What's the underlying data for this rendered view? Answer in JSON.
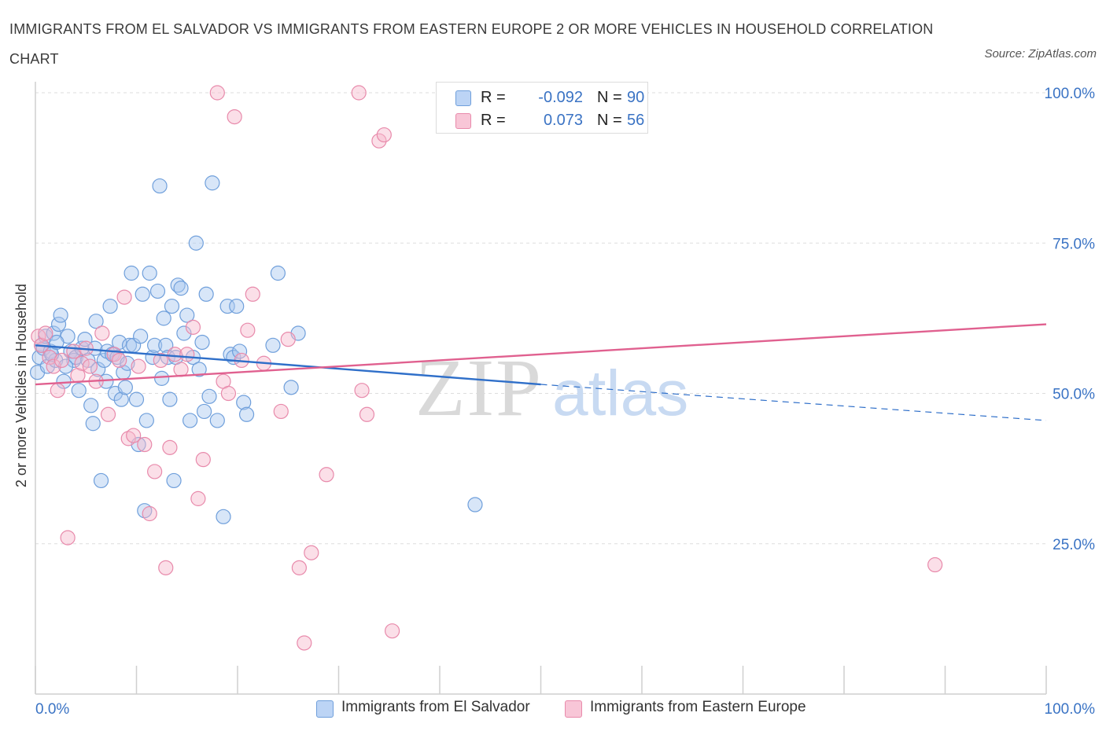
{
  "title": "IMMIGRANTS FROM EL SALVADOR VS IMMIGRANTS FROM EASTERN EUROPE 2 OR MORE VEHICLES IN HOUSEHOLD CORRELATION CHART",
  "source": "Source: ZipAtlas.com",
  "watermark": {
    "zip": "ZIP",
    "atlas": "atlas"
  },
  "colors": {
    "blue_fill": "#a9c8f0",
    "blue_stroke": "#6f9fdb",
    "blue_line": "#2f6fc9",
    "pink_fill": "#f6b8cd",
    "pink_stroke": "#e88aab",
    "pink_line": "#e0608f",
    "axis_text": "#3a73c4",
    "grid": "#dddddd"
  },
  "legend": {
    "rows": [
      {
        "r_label": "R =",
        "r_value": "-0.092",
        "n_label": "N =",
        "n_value": "90",
        "color": "blue"
      },
      {
        "r_label": "R =",
        "r_value": "0.073",
        "n_label": "N =",
        "n_value": "56",
        "color": "pink"
      }
    ]
  },
  "chart_data": {
    "type": "scatter",
    "title": "IMMIGRANTS FROM EL SALVADOR VS IMMIGRANTS FROM EASTERN EUROPE 2 OR MORE VEHICLES IN HOUSEHOLD CORRELATION CHART",
    "xlabel": "",
    "ylabel": "2 or more Vehicles in Household",
    "xlim": [
      0,
      100
    ],
    "ylim": [
      0,
      100
    ],
    "x_ticks": [
      "0.0%",
      "100.0%"
    ],
    "y_ticks": [
      "25.0%",
      "50.0%",
      "75.0%",
      "100.0%"
    ],
    "y_tick_values": [
      25,
      50,
      75,
      100
    ],
    "grid": true,
    "legend_position": "bottom",
    "series": [
      {
        "name": "Immigrants from El Salvador",
        "color": "blue",
        "trend": {
          "x0": 0,
          "y0": 58.0,
          "x1": 50,
          "y1": 51.5,
          "dash_to_x": 100,
          "dash_to_y": 45.5
        },
        "points": [
          [
            0.2,
            53.5
          ],
          [
            0.4,
            56.0
          ],
          [
            0.6,
            58.0
          ],
          [
            0.8,
            57.5
          ],
          [
            1.0,
            59.5
          ],
          [
            1.2,
            54.5
          ],
          [
            1.5,
            57.0
          ],
          [
            1.8,
            60.0
          ],
          [
            2.0,
            55.5
          ],
          [
            2.3,
            61.5
          ],
          [
            2.5,
            63.0
          ],
          [
            2.8,
            52.0
          ],
          [
            3.2,
            59.5
          ],
          [
            3.5,
            57.0
          ],
          [
            3.8,
            55.5
          ],
          [
            4.0,
            56.0
          ],
          [
            4.3,
            50.5
          ],
          [
            4.6,
            57.5
          ],
          [
            4.9,
            59.0
          ],
          [
            5.2,
            55.5
          ],
          [
            5.5,
            48.0
          ],
          [
            5.7,
            45.0
          ],
          [
            5.9,
            57.5
          ],
          [
            6.0,
            62.0
          ],
          [
            6.2,
            54.0
          ],
          [
            6.5,
            35.5
          ],
          [
            6.8,
            55.5
          ],
          [
            7.1,
            57.0
          ],
          [
            7.4,
            64.5
          ],
          [
            7.6,
            56.5
          ],
          [
            7.9,
            50.0
          ],
          [
            8.1,
            56.0
          ],
          [
            8.3,
            58.5
          ],
          [
            8.5,
            49.0
          ],
          [
            8.7,
            53.5
          ],
          [
            8.9,
            51.0
          ],
          [
            9.1,
            55.0
          ],
          [
            9.3,
            58.0
          ],
          [
            9.5,
            70.0
          ],
          [
            9.7,
            58.0
          ],
          [
            10.0,
            49.0
          ],
          [
            10.2,
            41.5
          ],
          [
            10.4,
            59.5
          ],
          [
            10.6,
            66.5
          ],
          [
            10.8,
            30.5
          ],
          [
            11.0,
            45.5
          ],
          [
            11.3,
            70.0
          ],
          [
            11.6,
            56.0
          ],
          [
            11.8,
            58.0
          ],
          [
            12.1,
            67.0
          ],
          [
            12.3,
            84.5
          ],
          [
            12.5,
            52.5
          ],
          [
            12.7,
            62.5
          ],
          [
            12.9,
            58.0
          ],
          [
            13.1,
            56.0
          ],
          [
            13.3,
            49.0
          ],
          [
            13.5,
            64.5
          ],
          [
            13.7,
            35.5
          ],
          [
            13.9,
            56.0
          ],
          [
            14.1,
            68.0
          ],
          [
            14.4,
            67.5
          ],
          [
            14.7,
            60.0
          ],
          [
            15.0,
            63.0
          ],
          [
            15.3,
            45.5
          ],
          [
            15.6,
            56.0
          ],
          [
            15.9,
            75.0
          ],
          [
            16.2,
            54.0
          ],
          [
            16.5,
            58.5
          ],
          [
            16.7,
            47.0
          ],
          [
            16.9,
            66.5
          ],
          [
            17.2,
            49.5
          ],
          [
            17.5,
            85.0
          ],
          [
            18.0,
            45.5
          ],
          [
            18.6,
            29.5
          ],
          [
            19.0,
            64.5
          ],
          [
            19.3,
            56.5
          ],
          [
            19.6,
            56.0
          ],
          [
            19.9,
            64.5
          ],
          [
            20.2,
            57.0
          ],
          [
            20.6,
            48.5
          ],
          [
            20.9,
            46.5
          ],
          [
            23.5,
            58.0
          ],
          [
            24.0,
            70.0
          ],
          [
            25.3,
            51.0
          ],
          [
            26.0,
            60.0
          ],
          [
            43.5,
            31.5
          ],
          [
            1.6,
            56.5
          ],
          [
            2.1,
            58.5
          ],
          [
            3.0,
            54.5
          ],
          [
            7.0,
            52.0
          ]
        ]
      },
      {
        "name": "Immigrants from Eastern Europe",
        "color": "pink",
        "trend": {
          "x0": 0,
          "y0": 51.5,
          "x1": 100,
          "y1": 61.5
        },
        "points": [
          [
            0.3,
            59.5
          ],
          [
            0.6,
            58.0
          ],
          [
            1.0,
            60.0
          ],
          [
            1.4,
            56.0
          ],
          [
            1.8,
            54.5
          ],
          [
            2.2,
            50.5
          ],
          [
            2.6,
            55.5
          ],
          [
            3.2,
            26.0
          ],
          [
            3.8,
            57.0
          ],
          [
            4.2,
            53.0
          ],
          [
            4.6,
            55.0
          ],
          [
            5.0,
            57.5
          ],
          [
            5.4,
            54.5
          ],
          [
            6.0,
            52.0
          ],
          [
            6.6,
            60.0
          ],
          [
            7.2,
            46.5
          ],
          [
            7.8,
            56.5
          ],
          [
            8.3,
            55.5
          ],
          [
            8.8,
            66.0
          ],
          [
            9.2,
            42.5
          ],
          [
            9.7,
            43.0
          ],
          [
            10.2,
            54.5
          ],
          [
            10.8,
            41.5
          ],
          [
            11.3,
            30.0
          ],
          [
            11.8,
            37.0
          ],
          [
            12.4,
            55.5
          ],
          [
            12.9,
            21.0
          ],
          [
            13.3,
            41.0
          ],
          [
            13.8,
            56.5
          ],
          [
            14.4,
            54.0
          ],
          [
            15.0,
            56.5
          ],
          [
            15.6,
            61.0
          ],
          [
            16.1,
            32.5
          ],
          [
            16.6,
            39.0
          ],
          [
            18.0,
            100.0
          ],
          [
            18.6,
            52.0
          ],
          [
            19.1,
            50.0
          ],
          [
            19.7,
            96.0
          ],
          [
            20.4,
            55.5
          ],
          [
            21.0,
            60.5
          ],
          [
            21.5,
            66.5
          ],
          [
            22.6,
            55.0
          ],
          [
            24.3,
            47.0
          ],
          [
            25.0,
            59.0
          ],
          [
            26.1,
            21.0
          ],
          [
            26.6,
            8.5
          ],
          [
            27.3,
            23.5
          ],
          [
            28.8,
            36.5
          ],
          [
            32.0,
            100.0
          ],
          [
            32.3,
            50.5
          ],
          [
            32.8,
            46.5
          ],
          [
            34.0,
            92.0
          ],
          [
            34.5,
            93.0
          ],
          [
            35.3,
            10.5
          ],
          [
            47.0,
            100.0
          ],
          [
            89.0,
            21.5
          ]
        ]
      }
    ]
  },
  "bottom_legend": [
    {
      "label": "Immigrants from El Salvador",
      "color": "blue"
    },
    {
      "label": "Immigrants from Eastern Europe",
      "color": "pink"
    }
  ]
}
